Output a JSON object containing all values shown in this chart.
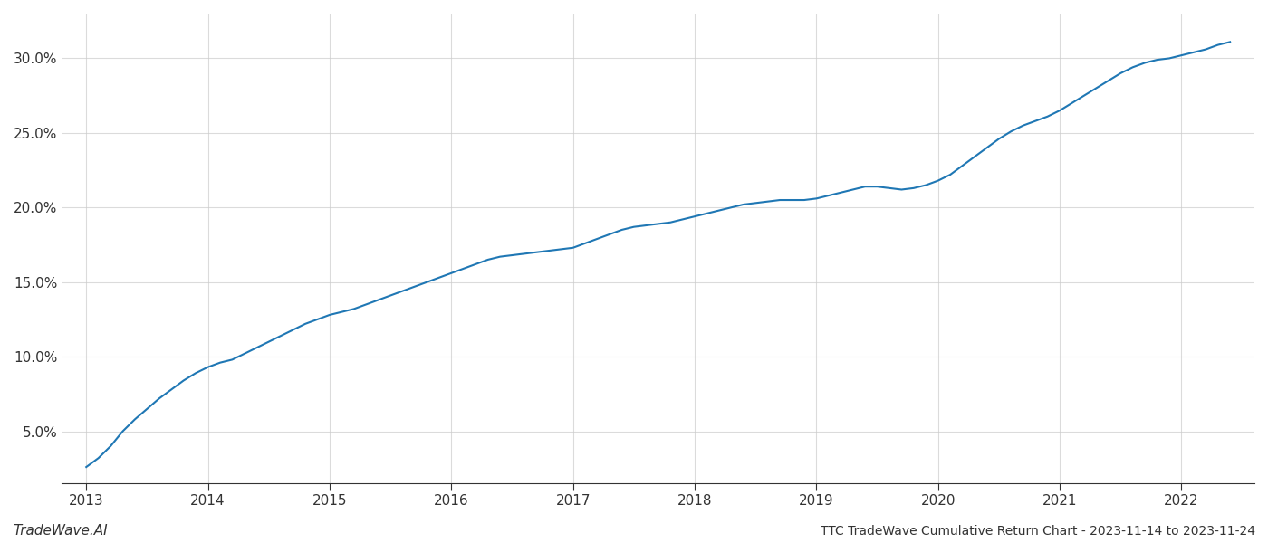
{
  "title": "TTC TradeWave Cumulative Return Chart - 2023-11-14 to 2023-11-24",
  "watermark": "TradeWave.AI",
  "line_color": "#1f77b4",
  "line_width": 1.5,
  "background_color": "#ffffff",
  "grid_color": "#cccccc",
  "x_values": [
    2013.0,
    2013.1,
    2013.2,
    2013.3,
    2013.4,
    2013.5,
    2013.6,
    2013.7,
    2013.8,
    2013.9,
    2014.0,
    2014.1,
    2014.2,
    2014.3,
    2014.4,
    2014.5,
    2014.6,
    2014.7,
    2014.8,
    2014.9,
    2015.0,
    2015.1,
    2015.2,
    2015.3,
    2015.4,
    2015.5,
    2015.6,
    2015.7,
    2015.8,
    2015.9,
    2016.0,
    2016.1,
    2016.2,
    2016.3,
    2016.4,
    2016.5,
    2016.6,
    2016.7,
    2016.8,
    2016.9,
    2017.0,
    2017.1,
    2017.2,
    2017.3,
    2017.4,
    2017.5,
    2017.6,
    2017.7,
    2017.8,
    2017.9,
    2018.0,
    2018.1,
    2018.2,
    2018.3,
    2018.4,
    2018.5,
    2018.6,
    2018.7,
    2018.8,
    2018.9,
    2019.0,
    2019.1,
    2019.2,
    2019.3,
    2019.4,
    2019.5,
    2019.6,
    2019.7,
    2019.8,
    2019.9,
    2020.0,
    2020.1,
    2020.2,
    2020.3,
    2020.4,
    2020.5,
    2020.6,
    2020.7,
    2020.8,
    2020.9,
    2021.0,
    2021.1,
    2021.2,
    2021.3,
    2021.4,
    2021.5,
    2021.6,
    2021.7,
    2021.8,
    2021.9,
    2022.0,
    2022.1,
    2022.2,
    2022.3,
    2022.4
  ],
  "y_values": [
    2.6,
    3.2,
    4.0,
    5.0,
    5.8,
    6.5,
    7.2,
    7.8,
    8.4,
    8.9,
    9.3,
    9.6,
    9.8,
    10.2,
    10.6,
    11.0,
    11.4,
    11.8,
    12.2,
    12.5,
    12.8,
    13.0,
    13.2,
    13.5,
    13.8,
    14.1,
    14.4,
    14.7,
    15.0,
    15.3,
    15.6,
    15.9,
    16.2,
    16.5,
    16.7,
    16.8,
    16.9,
    17.0,
    17.1,
    17.2,
    17.3,
    17.6,
    17.9,
    18.2,
    18.5,
    18.7,
    18.8,
    18.9,
    19.0,
    19.2,
    19.4,
    19.6,
    19.8,
    20.0,
    20.2,
    20.3,
    20.4,
    20.5,
    20.5,
    20.5,
    20.6,
    20.8,
    21.0,
    21.2,
    21.4,
    21.4,
    21.3,
    21.2,
    21.3,
    21.5,
    21.8,
    22.2,
    22.8,
    23.4,
    24.0,
    24.6,
    25.1,
    25.5,
    25.8,
    26.1,
    26.5,
    27.0,
    27.5,
    28.0,
    28.5,
    29.0,
    29.4,
    29.7,
    29.9,
    30.0,
    30.2,
    30.4,
    30.6,
    30.9,
    31.1
  ],
  "yticks": [
    5.0,
    10.0,
    15.0,
    20.0,
    25.0,
    30.0
  ],
  "ytick_labels": [
    "5.0%",
    "10.0%",
    "15.0%",
    "20.0%",
    "25.0%",
    "30.0%"
  ],
  "xticks": [
    2013,
    2014,
    2015,
    2016,
    2017,
    2018,
    2019,
    2020,
    2021,
    2022
  ],
  "xlim": [
    2012.8,
    2022.6
  ],
  "ylim": [
    1.5,
    33.0
  ],
  "figsize": [
    14.0,
    6.0
  ],
  "dpi": 100
}
